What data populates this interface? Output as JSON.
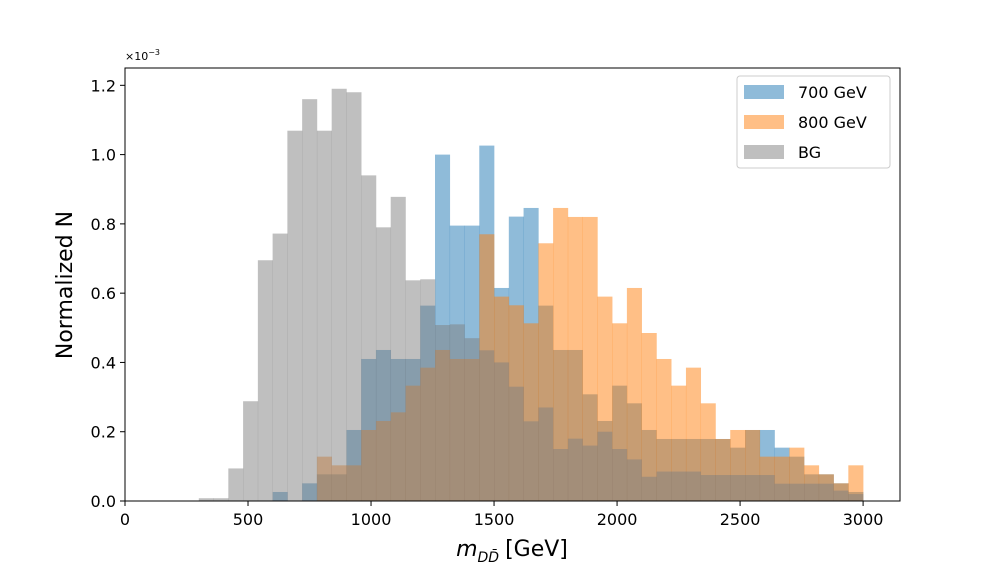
{
  "chart_data": {
    "type": "histogram",
    "xlabel_main": "m",
    "xlabel_sub": "DD̄",
    "xlabel_unit": "[GeV]",
    "ylabel": "Normalized N",
    "yoffset_base": "×10",
    "yoffset_exp": "−3",
    "xlim": [
      0,
      3150
    ],
    "ylim": [
      0,
      1.25
    ],
    "xticks": [
      "0",
      "500",
      "1000",
      "1500",
      "2000",
      "2500",
      "3000"
    ],
    "yticks": [
      "0.0",
      "0.2",
      "0.4",
      "0.6",
      "0.8",
      "1.0",
      "1.2"
    ],
    "legend_position": "upper right",
    "bin_edges": [
      300,
      360,
      420,
      480,
      540,
      600,
      660,
      720,
      780,
      840,
      900,
      960,
      1020,
      1080,
      1140,
      1200,
      1260,
      1320,
      1380,
      1440,
      1500,
      1560,
      1620,
      1680,
      1740,
      1800,
      1860,
      1920,
      1980,
      2040,
      2100,
      2160,
      2220,
      2280,
      2340,
      2400,
      2460,
      2520,
      2580,
      2640,
      2700,
      2760,
      2820,
      2880,
      2940,
      3000
    ],
    "series": [
      {
        "name": "700 GeV",
        "color": "#1f77b4",
        "values": [
          0,
          0,
          0,
          0,
          0,
          0.026,
          0,
          0.051,
          0.077,
          0.077,
          0.205,
          0.41,
          0.436,
          0.41,
          0.41,
          0.564,
          1.0,
          0.795,
          0.795,
          1.026,
          0.615,
          0.821,
          0.846,
          0.564,
          0.436,
          0.436,
          0.308,
          0.231,
          0.333,
          0.282,
          0.205,
          0.179,
          0.179,
          0.179,
          0.179,
          0.179,
          0.154,
          0.205,
          0.205,
          0.154,
          0.128,
          0.077,
          0.077,
          0.051,
          0.026
        ]
      },
      {
        "name": "800 GeV",
        "color": "#ff7f0e",
        "values": [
          0,
          0,
          0,
          0,
          0,
          0,
          0,
          0,
          0.128,
          0.103,
          0.103,
          0.205,
          0.231,
          0.256,
          0.333,
          0.385,
          0.436,
          0.41,
          0.41,
          0.77,
          0.59,
          0.565,
          0.513,
          0.744,
          0.846,
          0.82,
          0.82,
          0.59,
          0.513,
          0.615,
          0.485,
          0.41,
          0.333,
          0.385,
          0.282,
          0.179,
          0.205,
          0.205,
          0.128,
          0.128,
          0.154,
          0.103,
          0.077,
          0.051,
          0.103
        ]
      },
      {
        "name": "BG",
        "color": "#7f7f7f",
        "values": [
          0.008,
          0.008,
          0.094,
          0.288,
          0.695,
          0.772,
          1.069,
          1.16,
          1.069,
          1.19,
          1.18,
          0.94,
          0.79,
          0.878,
          0.637,
          0.64,
          0.508,
          0.51,
          0.47,
          0.435,
          0.4,
          0.33,
          0.23,
          0.27,
          0.15,
          0.18,
          0.16,
          0.2,
          0.15,
          0.12,
          0.07,
          0.085,
          0.085,
          0.085,
          0.075,
          0.075,
          0.075,
          0.075,
          0.075,
          0.05,
          0.05,
          0.05,
          0.05,
          0.03,
          0.02
        ]
      }
    ]
  }
}
